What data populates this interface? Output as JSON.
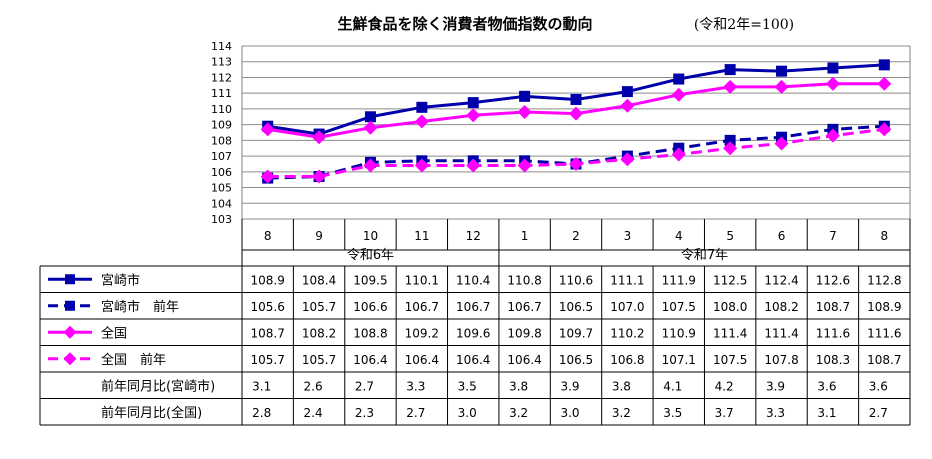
{
  "chart_data": {
    "type": "line",
    "title": "生鮮食品を除く消費者物価指数の動向",
    "note": "(令和2年=100)",
    "ylim": [
      103,
      114
    ],
    "yticks": [
      103,
      104,
      105,
      106,
      107,
      108,
      109,
      110,
      111,
      112,
      113,
      114
    ],
    "categories": [
      "8",
      "9",
      "10",
      "11",
      "12",
      "1",
      "2",
      "3",
      "4",
      "5",
      "6",
      "7",
      "8"
    ],
    "era_labels": [
      "令和6年",
      "令和7年"
    ],
    "grid": true,
    "series": [
      {
        "name": "宮崎市",
        "color": "#0000aa",
        "dashed": false,
        "marker": "square",
        "values": [
          108.9,
          108.4,
          109.5,
          110.1,
          110.4,
          110.8,
          110.6,
          111.1,
          111.9,
          112.5,
          112.4,
          112.6,
          112.8
        ],
        "labels": [
          "108.9",
          "108.4",
          "109.5",
          "110.1",
          "110.4",
          "110.8",
          "110.6",
          "111.1",
          "111.9",
          "112.5",
          "112.4",
          "112.6",
          "112.8"
        ]
      },
      {
        "name": "宮崎市　前年",
        "color": "#0000aa",
        "dashed": true,
        "marker": "square",
        "values": [
          105.6,
          105.7,
          106.6,
          106.7,
          106.7,
          106.7,
          106.5,
          107.0,
          107.5,
          108.0,
          108.2,
          108.7,
          108.9
        ],
        "labels": [
          "105.6",
          "105.7",
          "106.6",
          "106.7",
          "106.7",
          "106.7",
          "106.5",
          "107.0",
          "107.5",
          "108.0",
          "108.2",
          "108.7",
          "108.9"
        ]
      },
      {
        "name": "全国",
        "color": "#ff00ff",
        "dashed": false,
        "marker": "diamond",
        "values": [
          108.7,
          108.2,
          108.8,
          109.2,
          109.6,
          109.8,
          109.7,
          110.2,
          110.9,
          111.4,
          111.4,
          111.6,
          111.6
        ],
        "labels": [
          "108.7",
          "108.2",
          "108.8",
          "109.2",
          "109.6",
          "109.8",
          "109.7",
          "110.2",
          "110.9",
          "111.4",
          "111.4",
          "111.6",
          "111.6"
        ]
      },
      {
        "name": "全国　前年",
        "color": "#ff00ff",
        "dashed": true,
        "marker": "diamond",
        "values": [
          105.7,
          105.7,
          106.4,
          106.4,
          106.4,
          106.4,
          106.5,
          106.8,
          107.1,
          107.5,
          107.8,
          108.3,
          108.7
        ],
        "labels": [
          "105.7",
          "105.7",
          "106.4",
          "106.4",
          "106.4",
          "106.4",
          "106.5",
          "106.8",
          "107.1",
          "107.5",
          "107.8",
          "108.3",
          "108.7"
        ]
      }
    ],
    "table_extra_rows": [
      {
        "name": "前年同月比(宮崎市)",
        "values": [
          "3.1",
          "2.6",
          "2.7",
          "3.3",
          "3.5",
          "3.8",
          "3.9",
          "3.8",
          "4.1",
          "4.2",
          "3.9",
          "3.6",
          "3.6"
        ]
      },
      {
        "name": "前年同月比(全国)",
        "values": [
          "2.8",
          "2.4",
          "2.3",
          "2.7",
          "3.0",
          "3.2",
          "3.0",
          "3.2",
          "3.5",
          "3.7",
          "3.3",
          "3.1",
          "2.7"
        ]
      }
    ]
  }
}
